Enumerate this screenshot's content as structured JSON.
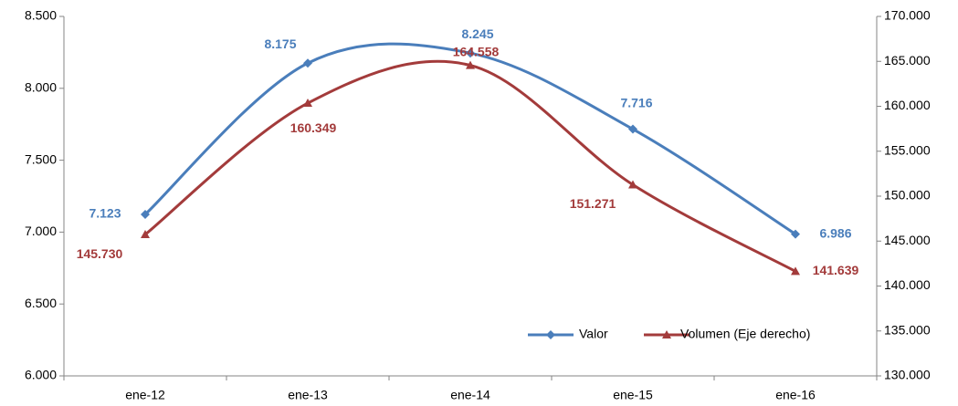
{
  "chart_data": {
    "type": "line",
    "categories": [
      "ene-12",
      "ene-13",
      "ene-14",
      "ene-15",
      "ene-16"
    ],
    "series": [
      {
        "name": "Valor",
        "color": "#4a7ebb",
        "marker": "diamond",
        "axis": "y",
        "values": [
          7123,
          8175,
          8245,
          7716,
          6986
        ],
        "value_labels": [
          "7.123",
          "8.175",
          "8.245",
          "7.716",
          "6.986"
        ]
      },
      {
        "name": "Volumen (Eje derecho)",
        "color": "#a33b3b",
        "marker": "triangle",
        "axis": "y2",
        "values": [
          145730,
          160349,
          164558,
          151271,
          141639
        ],
        "value_labels": [
          "145.730",
          "160.349",
          "164.558",
          "151.271",
          "141.639"
        ]
      }
    ],
    "ylim": [
      6000,
      8500
    ],
    "yticks": [
      {
        "value": 6000,
        "label": "6.000"
      },
      {
        "value": 6500,
        "label": "6.500"
      },
      {
        "value": 7000,
        "label": "7.000"
      },
      {
        "value": 7500,
        "label": "7.500"
      },
      {
        "value": 8000,
        "label": "8.000"
      },
      {
        "value": 8500,
        "label": "8.500"
      }
    ],
    "y2lim": [
      130000,
      170000
    ],
    "y2ticks": [
      {
        "value": 130000,
        "label": "130.000"
      },
      {
        "value": 135000,
        "label": "135.000"
      },
      {
        "value": 140000,
        "label": "140.000"
      },
      {
        "value": 145000,
        "label": "145.000"
      },
      {
        "value": 150000,
        "label": "150.000"
      },
      {
        "value": 155000,
        "label": "155.000"
      },
      {
        "value": 160000,
        "label": "160.000"
      },
      {
        "value": 165000,
        "label": "165.000"
      },
      {
        "value": 170000,
        "label": "170.000"
      }
    ],
    "smooth": true,
    "grid": false,
    "legend": "lower right"
  }
}
